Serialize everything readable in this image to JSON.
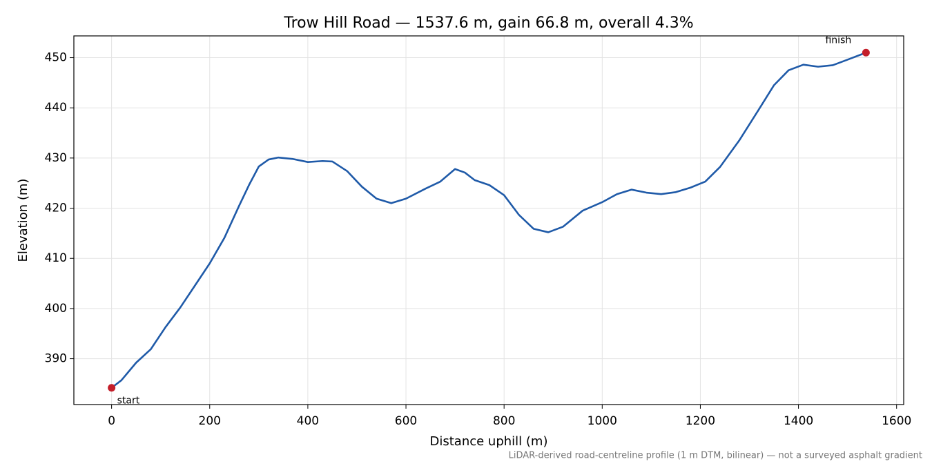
{
  "chart_data": {
    "type": "line",
    "title": "Trow Hill Road — 1537.6 m, gain 66.8 m, overall 4.3%",
    "x_label": "Distance uphill (m)",
    "y_label": "Elevation (m)",
    "footnote": "LiDAR-derived road-centreline profile (1 m DTM, bilinear) — not a surveyed asphalt gradient",
    "x": [
      0,
      20,
      50,
      80,
      110,
      140,
      170,
      200,
      230,
      260,
      280,
      300,
      320,
      340,
      370,
      400,
      430,
      450,
      480,
      510,
      540,
      570,
      600,
      640,
      670,
      700,
      720,
      740,
      770,
      800,
      830,
      860,
      890,
      920,
      960,
      1000,
      1030,
      1060,
      1090,
      1120,
      1150,
      1180,
      1210,
      1240,
      1280,
      1320,
      1350,
      1380,
      1410,
      1440,
      1470,
      1500,
      1537.6
    ],
    "series": [
      {
        "color": "#1f5aa8",
        "values": [
          384.2,
          385.7,
          389.2,
          391.9,
          396.3,
          400.2,
          404.6,
          409.0,
          414.1,
          420.5,
          424.6,
          428.3,
          429.7,
          430.1,
          429.8,
          429.2,
          429.4,
          429.3,
          427.4,
          424.3,
          421.9,
          421.0,
          421.9,
          423.9,
          425.3,
          427.8,
          427.1,
          425.6,
          424.6,
          422.6,
          418.7,
          415.9,
          415.2,
          416.3,
          419.5,
          421.2,
          422.8,
          423.7,
          423.1,
          422.8,
          423.2,
          424.1,
          425.3,
          428.2,
          433.6,
          439.8,
          444.5,
          447.5,
          448.6,
          448.2,
          448.5,
          449.6,
          451.0
        ]
      }
    ],
    "annotations": [
      {
        "text": "start",
        "x": 0,
        "y": 384.2,
        "color": "#c41e2a"
      },
      {
        "text": "finish",
        "x": 1537.6,
        "y": 451.0,
        "color": "#c41e2a"
      }
    ],
    "xlim": [
      -76.88,
      1614.48
    ],
    "ylim": [
      380.86,
      454.34
    ],
    "xticks": [
      0,
      200,
      400,
      600,
      800,
      1000,
      1200,
      1400,
      1600
    ],
    "yticks": [
      390,
      400,
      410,
      420,
      430,
      440,
      450
    ],
    "grid": true
  }
}
